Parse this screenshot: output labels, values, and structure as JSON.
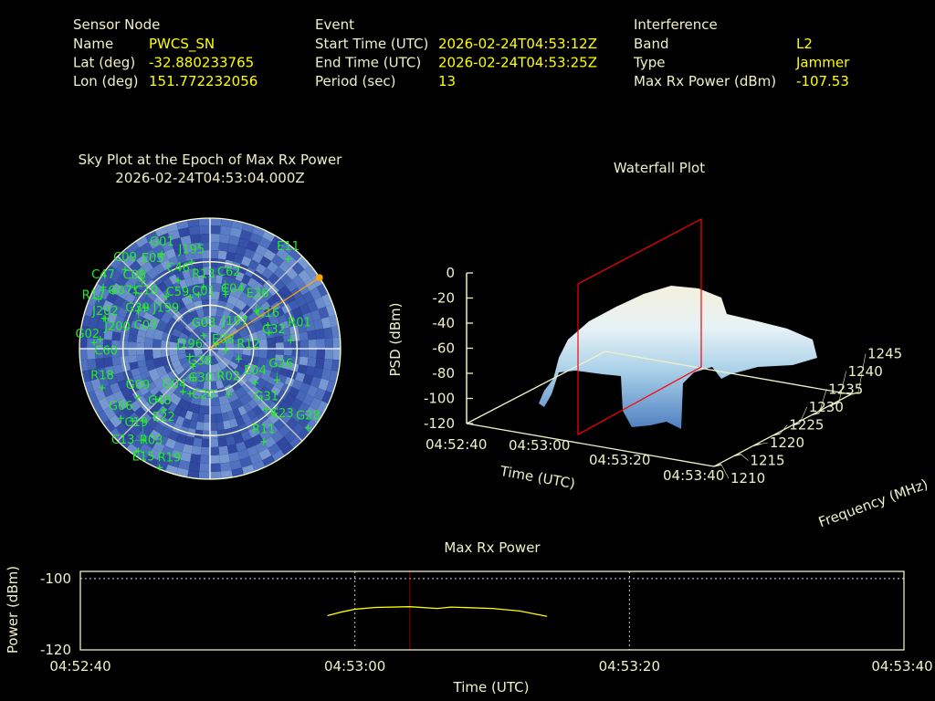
{
  "header": {
    "sensor_node": {
      "title": "Sensor Node",
      "rows": [
        {
          "label": "Name",
          "value": "PWCS_SN"
        },
        {
          "label": "Lat (deg)",
          "value": "-32.880233765"
        },
        {
          "label": "Lon (deg)",
          "value": "151.772232056"
        }
      ]
    },
    "event": {
      "title": "Event",
      "rows": [
        {
          "label": "Start Time (UTC)",
          "value": "2026-02-24T04:53:12Z"
        },
        {
          "label": "End Time (UTC)",
          "value": "2026-02-24T04:53:25Z"
        },
        {
          "label": "Period (sec)",
          "value": "13"
        }
      ]
    },
    "interference": {
      "title": "Interference",
      "rows": [
        {
          "label": "Band",
          "value": "L2"
        },
        {
          "label": "Type",
          "value": "Jammer"
        },
        {
          "label": "Max Rx Power (dBm)",
          "value": "-107.53"
        }
      ]
    }
  },
  "colors": {
    "label": "#f0f0c8",
    "value": "#ffff00",
    "satellite": "#22ee22",
    "interference_direction": "#ffa500",
    "power_line": "#ffff00",
    "epoch_marker": "#ff0000",
    "sky_background": "#4060b0"
  },
  "chart_data": [
    {
      "type": "scatter",
      "subtype": "polar-skyplot",
      "title": "Sky Plot at the Epoch of Max Rx Power",
      "subtitle": "2026-02-24T04:53:04.000Z",
      "elevation_rings_deg": [
        0,
        30,
        60
      ],
      "satellites": [
        {
          "id": "G01",
          "az": 333,
          "el": 17
        },
        {
          "id": "J195",
          "az": 348,
          "el": 29
        },
        {
          "id": "C09",
          "az": 313,
          "el": 10
        },
        {
          "id": "C47",
          "az": 300,
          "el": 5
        },
        {
          "id": "G07",
          "az": 301,
          "el": 12
        },
        {
          "id": "C08",
          "az": 309,
          "el": 23
        },
        {
          "id": "E05",
          "az": 315,
          "el": 24
        },
        {
          "id": "C10",
          "az": 307,
          "el": 26
        },
        {
          "id": "C46",
          "az": 335,
          "el": 38
        },
        {
          "id": "R13",
          "az": 354,
          "el": 47
        },
        {
          "id": "C01",
          "az": 348,
          "el": 52
        },
        {
          "id": "C59",
          "az": 339,
          "el": 52
        },
        {
          "id": "C62",
          "az": 14,
          "el": 47
        },
        {
          "id": "C04",
          "az": 16,
          "el": 51
        },
        {
          "id": "J199",
          "az": 320,
          "el": 43
        },
        {
          "id": "G39",
          "az": 302,
          "el": 37
        },
        {
          "id": "C03",
          "az": 298,
          "el": 34
        },
        {
          "id": "R17",
          "az": 294,
          "el": 6
        },
        {
          "id": "J202",
          "az": 286,
          "el": 14
        },
        {
          "id": "J200",
          "az": 286,
          "el": 15
        },
        {
          "id": "G02",
          "az": 275,
          "el": 14
        },
        {
          "id": "C60",
          "az": 273,
          "el": 10
        },
        {
          "id": "E36",
          "az": 51,
          "el": 49
        },
        {
          "id": "C16",
          "az": 68,
          "el": 47
        },
        {
          "id": "C32",
          "az": 75,
          "el": 48
        },
        {
          "id": "R01",
          "az": 84,
          "el": 34
        },
        {
          "id": "G03",
          "az": 334,
          "el": 80
        },
        {
          "id": "E08",
          "az": 57,
          "el": 85
        },
        {
          "id": "J197",
          "az": 96,
          "el": 79
        },
        {
          "id": "R12",
          "az": 110,
          "el": 69
        },
        {
          "id": "J196",
          "az": 249,
          "el": 75
        },
        {
          "id": "G38",
          "az": 224,
          "el": 73
        },
        {
          "id": "G30",
          "az": 210,
          "el": 67
        },
        {
          "id": "G04",
          "az": 212,
          "el": 55
        },
        {
          "id": "C20",
          "az": 204,
          "el": 56
        },
        {
          "id": "R02",
          "az": 158,
          "el": 56
        },
        {
          "id": "E04",
          "az": 127,
          "el": 51
        },
        {
          "id": "G26",
          "az": 115,
          "el": 39
        },
        {
          "id": "G31",
          "az": 137,
          "el": 33
        },
        {
          "id": "C23",
          "az": 135,
          "el": 27
        },
        {
          "id": "G28",
          "az": 129,
          "el": 3
        },
        {
          "id": "R11",
          "az": 150,
          "el": 16
        },
        {
          "id": "R18",
          "az": 250,
          "el": 11
        },
        {
          "id": "G09",
          "az": 236,
          "el": 30
        },
        {
          "id": "C48",
          "az": 227,
          "el": 39
        },
        {
          "id": "E22",
          "az": 217,
          "el": 37
        },
        {
          "id": "G06",
          "az": 232,
          "el": 12
        },
        {
          "id": "C19",
          "az": 227,
          "el": 17
        },
        {
          "id": "R03",
          "az": 223,
          "el": 22
        },
        {
          "id": "C13",
          "az": 216,
          "el": 12
        },
        {
          "id": "E15",
          "az": 215,
          "el": 4
        },
        {
          "id": "R19",
          "az": 203,
          "el": 1
        },
        {
          "id": "E11",
          "az": 41,
          "el": 8
        }
      ],
      "interference_direction": {
        "az": 57,
        "el": 0
      }
    },
    {
      "type": "surface",
      "title": "Waterfall Plot",
      "xlabel": "Time (UTC)",
      "ylabel": "Frequency (MHz)",
      "zlabel": "PSD (dBm)",
      "x_ticks": [
        "04:52:40",
        "04:53:00",
        "04:53:20",
        "04:53:40"
      ],
      "y_ticks": [
        "1210",
        "1215",
        "1220",
        "1225",
        "1230",
        "1235",
        "1240",
        "1245"
      ],
      "z_ticks": [
        "0",
        "-20",
        "-40",
        "-60",
        "-80",
        "-100",
        "-120"
      ],
      "xlim": [
        "04:52:40",
        "04:53:40"
      ],
      "ylim": [
        1210,
        1245
      ],
      "zlim": [
        -120,
        0
      ],
      "epoch_plane_time": "04:53:04"
    },
    {
      "type": "line",
      "title": "Max Rx Power",
      "xlabel": "Time (UTC)",
      "ylabel": "Power (dBm)",
      "x_ticks": [
        "04:52:40",
        "04:53:00",
        "04:53:20",
        "04:53:40"
      ],
      "y_ticks": [
        "-100",
        "-120"
      ],
      "xlim": [
        "04:52:40",
        "04:53:40"
      ],
      "ylim": [
        -120,
        -98
      ],
      "grid": true,
      "epoch_marker_time": "04:53:04",
      "series": [
        {
          "x": [
            "04:52:58",
            "04:52:59",
            "04:53:00",
            "04:53:01.5",
            "04:53:04",
            "04:53:06",
            "04:53:07",
            "04:53:10",
            "04:53:12",
            "04:53:14"
          ],
          "y": [
            -110.4,
            -109.4,
            -108.6,
            -108.1,
            -107.9,
            -108.4,
            -108.0,
            -108.4,
            -109.1,
            -110.6
          ]
        }
      ]
    }
  ]
}
